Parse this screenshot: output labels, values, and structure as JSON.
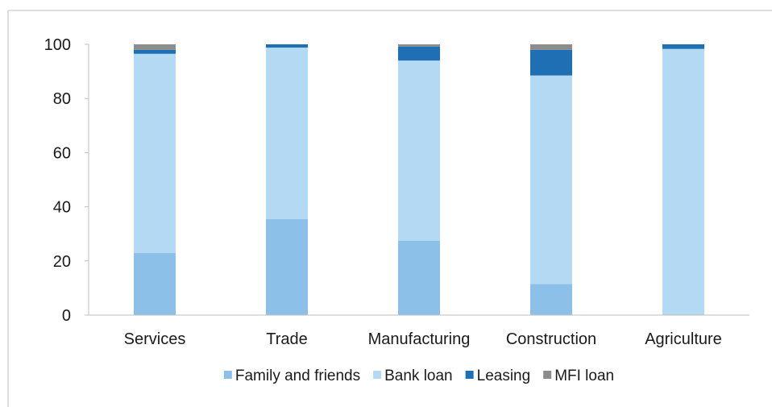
{
  "chart_data": {
    "type": "bar",
    "stacked": true,
    "categories": [
      "Services",
      "Trade",
      "Manufacturing",
      "Construction",
      "Agriculture"
    ],
    "series": [
      {
        "name": "Family and friends",
        "color": "#8dc0e8",
        "values": [
          23,
          35.5,
          27.5,
          11.5,
          0
        ]
      },
      {
        "name": "Bank loan",
        "color": "#b4d9f2",
        "values": [
          73.5,
          63.3,
          66.5,
          77,
          98.3
        ]
      },
      {
        "name": "Leasing",
        "color": "#1f6fb5",
        "values": [
          1.5,
          1.2,
          5.2,
          9.5,
          1.7
        ]
      },
      {
        "name": "MFI loan",
        "color": "#8c8c8c",
        "values": [
          2,
          0,
          0.8,
          2,
          0
        ]
      }
    ],
    "yticks": [
      0,
      20,
      40,
      60,
      80,
      100
    ],
    "ylim": [
      0,
      100
    ],
    "grid": false,
    "legend_position": "bottom"
  }
}
